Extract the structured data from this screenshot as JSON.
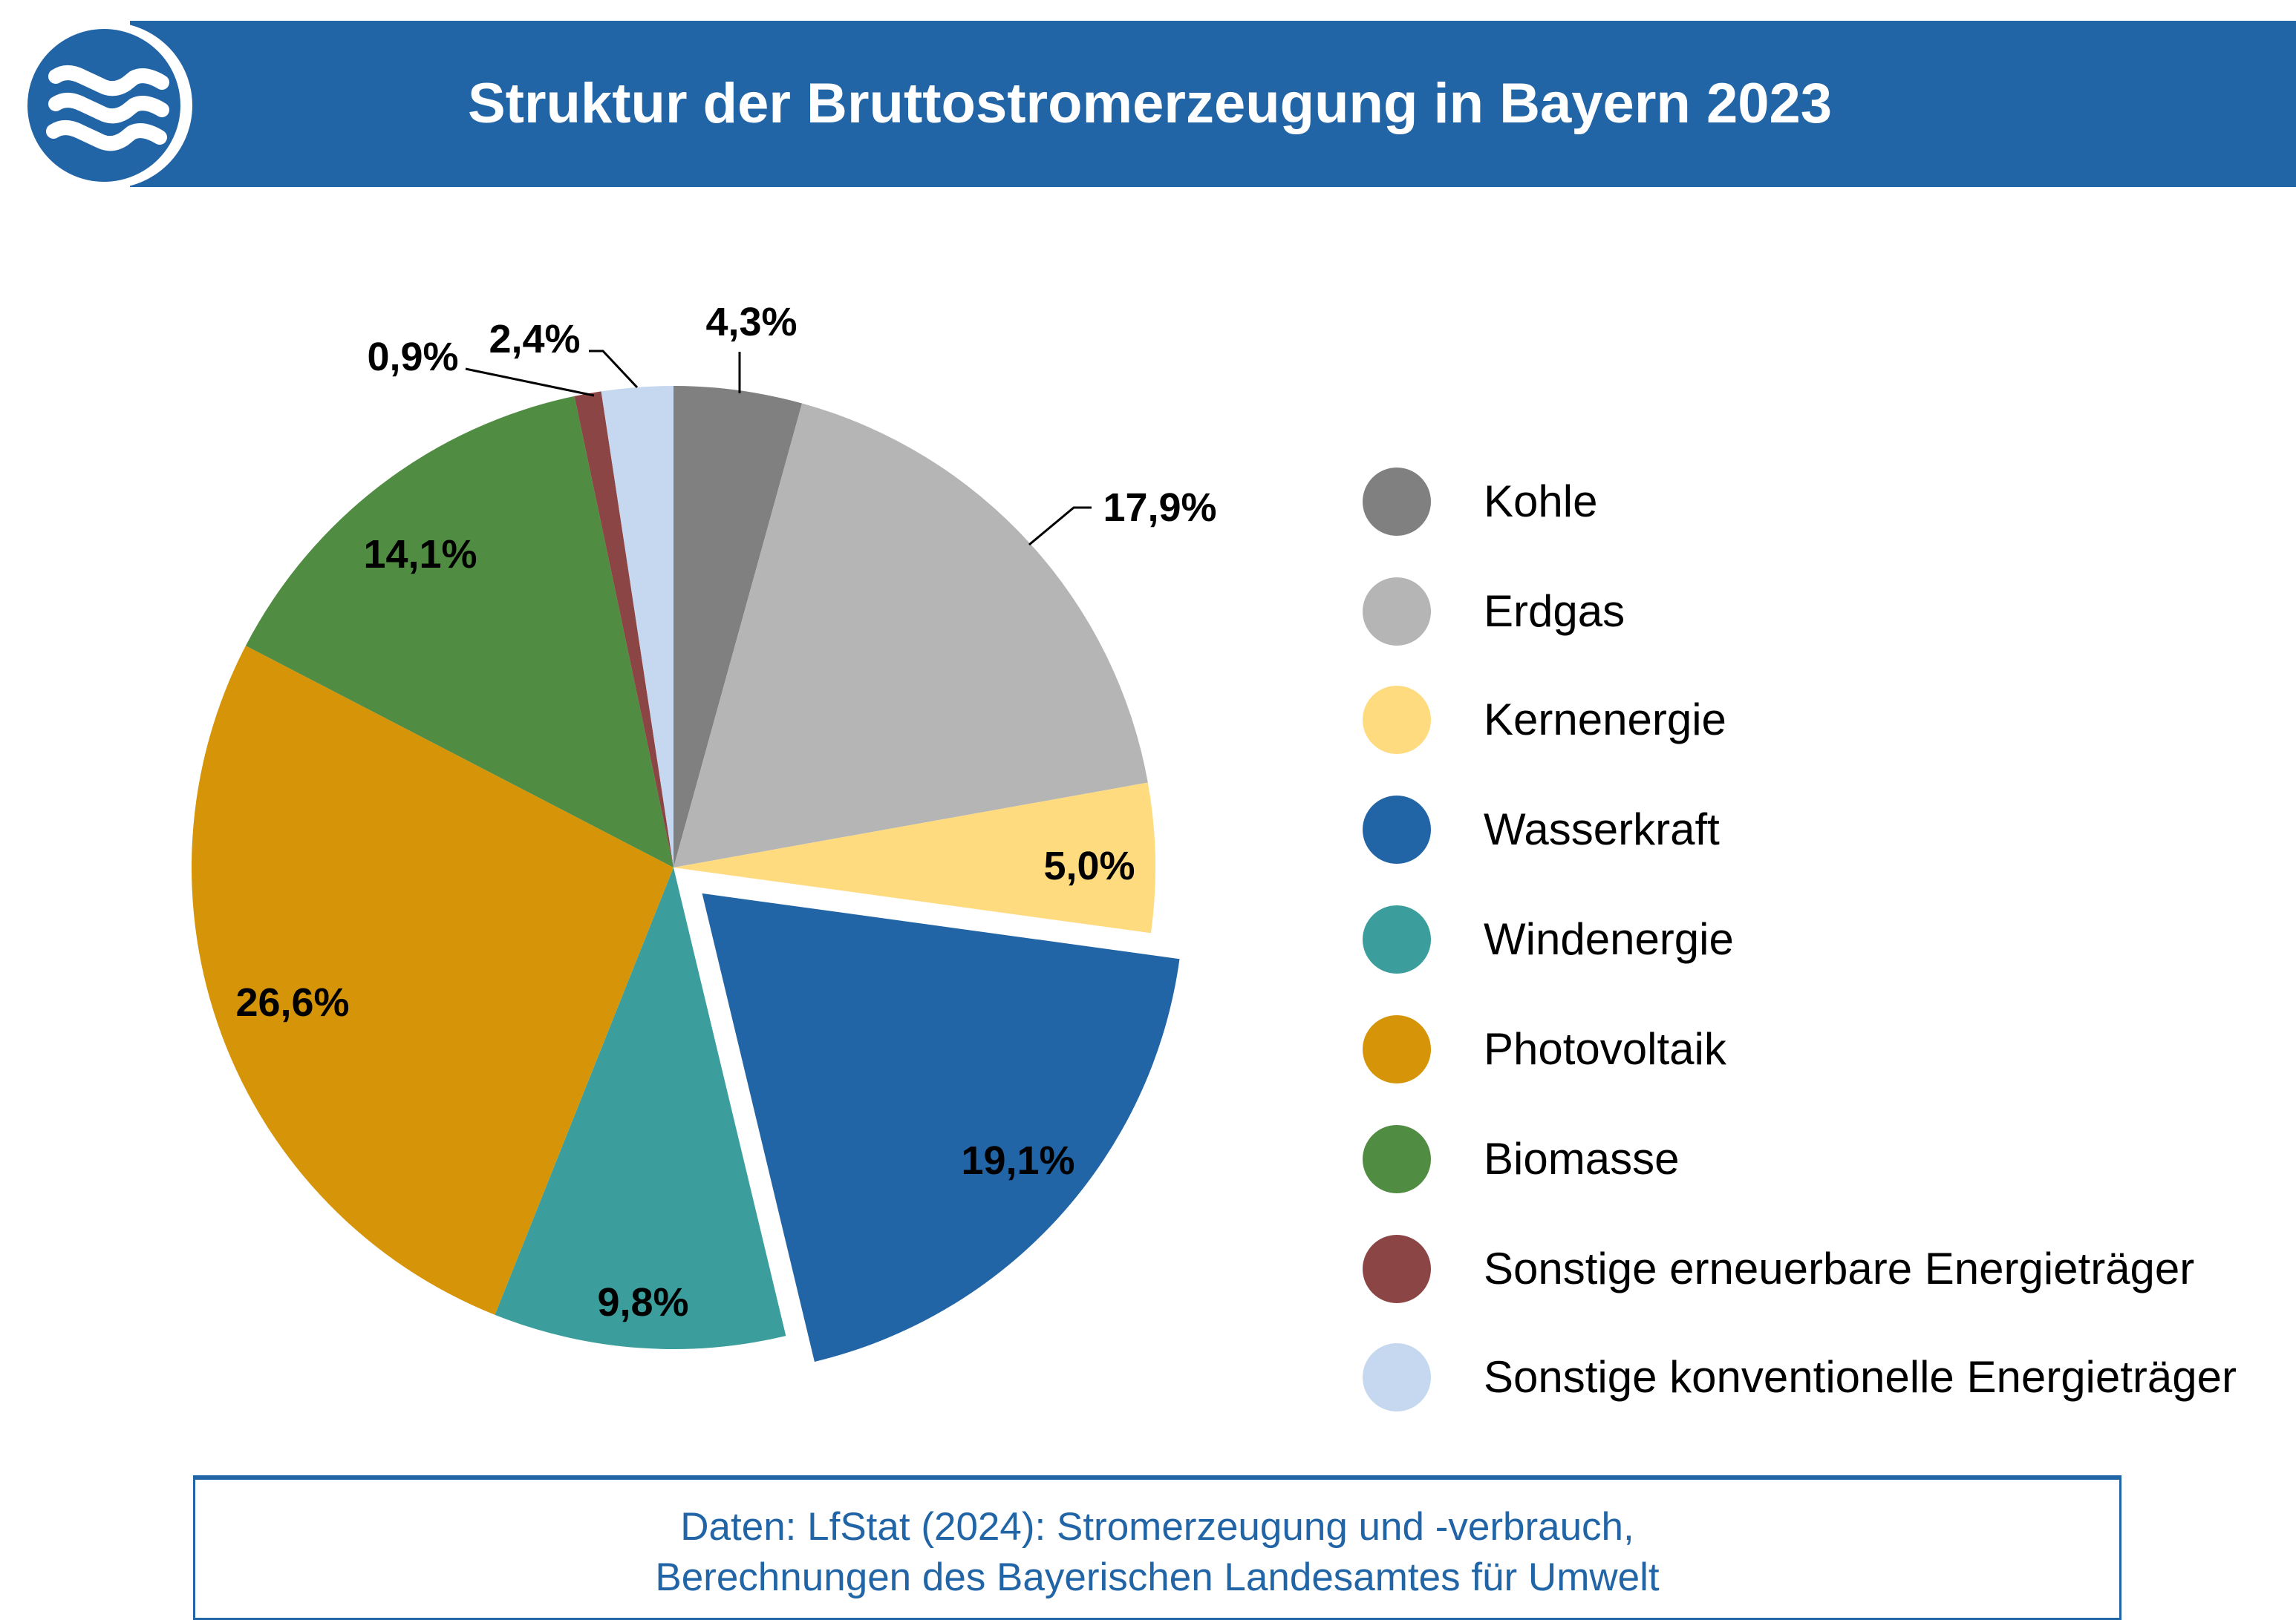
{
  "header": {
    "title": "Struktur der Bruttostromerzeugung in Bayern 2023",
    "logo_icon": "water-waves-icon",
    "color": "#2265a6"
  },
  "chart_data": {
    "type": "pie",
    "title": "Struktur der Bruttostromerzeugung in Bayern 2023",
    "unit": "%",
    "legend_position": "right",
    "exploded": "Wasserkraft",
    "slices": [
      {
        "name": "Kohle",
        "value": 4.3,
        "label": "4,3%",
        "color": "#808080"
      },
      {
        "name": "Erdgas",
        "value": 17.9,
        "label": "17,9%",
        "color": "#b5b5b5"
      },
      {
        "name": "Kernenergie",
        "value": 5.0,
        "label": "5,0%",
        "color": "#ffdb80"
      },
      {
        "name": "Wasserkraft",
        "value": 19.1,
        "label": "19,1%",
        "color": "#2265a6"
      },
      {
        "name": "Windenergie",
        "value": 9.8,
        "label": "9,8%",
        "color": "#3b9e9c"
      },
      {
        "name": "Photovoltaik",
        "value": 26.6,
        "label": "26,6%",
        "color": "#d69509"
      },
      {
        "name": "Biomasse",
        "value": 14.1,
        "label": "14,1%",
        "color": "#508c41"
      },
      {
        "name": "Sonstige erneuerbare Energieträger",
        "value": 0.9,
        "label": "0,9%",
        "color": "#8c4545"
      },
      {
        "name": "Sonstige konventionelle Energieträger",
        "value": 2.4,
        "label": "2,4%",
        "color": "#c5d8ef"
      }
    ]
  },
  "source": {
    "line1": "Daten: LfStat (2024): Stromerzeugung und -verbrauch,",
    "line2": "Berechnungen des Bayerischen Landesamtes für Umwelt"
  }
}
